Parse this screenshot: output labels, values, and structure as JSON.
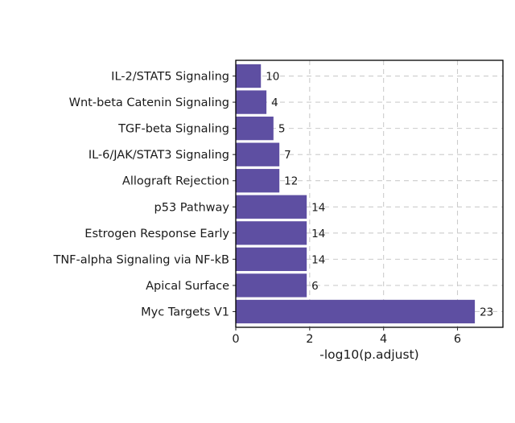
{
  "chart_data": {
    "type": "bar",
    "orientation": "horizontal",
    "title": "",
    "xlabel": "-log10(p.adjust)",
    "ylabel": "",
    "xlim": [
      0,
      7.23
    ],
    "xticks": [
      "0",
      "2",
      "4",
      "6"
    ],
    "grid": true,
    "bar_color": "#5E4FA2",
    "categories": [
      "IL-2/STAT5 Signaling",
      "Wnt-beta Catenin Signaling",
      "TGF-beta Signaling",
      "IL-6/JAK/STAT3 Signaling",
      "Allograft Rejection",
      "p53 Pathway",
      "Estrogen Response Early",
      "TNF-alpha Signaling via NF-kB",
      "Apical Surface",
      "Myc Targets V1"
    ],
    "values": [
      0.68,
      0.83,
      1.02,
      1.18,
      1.18,
      1.92,
      1.92,
      1.92,
      1.92,
      6.47
    ],
    "labels": [
      "10",
      "4",
      "5",
      "7",
      "12",
      "14",
      "14",
      "14",
      "6",
      "23"
    ]
  }
}
